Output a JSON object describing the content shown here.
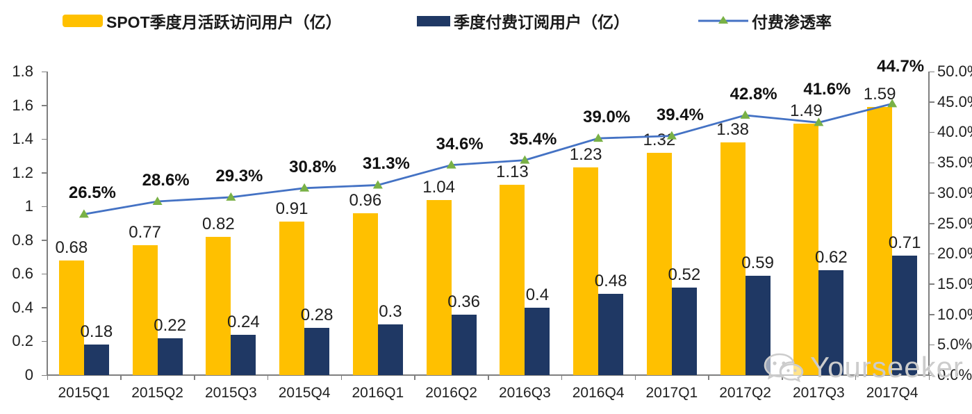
{
  "watermark": {
    "text": "Yourseeker",
    "icon": "wechat-icon"
  },
  "colors": {
    "mau_bar": "#FFC000",
    "paid_bar": "#1F3864",
    "line": "#4472C4",
    "marker": "#79B146",
    "axis": "#7F7F7F",
    "text": "#1F1F1F",
    "watermark": "#CCCCCC"
  },
  "chart_data": {
    "type": "bar",
    "subtype": "grouped-bars-with-line",
    "title": "",
    "xlabel": "",
    "ylabel_left": "",
    "ylabel_right": "",
    "grid": false,
    "legend_position": "top",
    "categories": [
      "2015Q1",
      "2015Q2",
      "2015Q3",
      "2015Q4",
      "2016Q1",
      "2016Q2",
      "2016Q3",
      "2016Q4",
      "2017Q1",
      "2017Q2",
      "2017Q3",
      "2017Q4"
    ],
    "series": [
      {
        "name": "SPOT季度月活跃访问用户（亿）",
        "type": "bar",
        "axis": "left",
        "color": "#FFC000",
        "values": [
          0.68,
          0.77,
          0.82,
          0.91,
          0.96,
          1.04,
          1.13,
          1.23,
          1.32,
          1.38,
          1.49,
          1.59
        ]
      },
      {
        "name": "季度付费订阅用户（亿）",
        "type": "bar",
        "axis": "left",
        "color": "#1F3864",
        "values": [
          0.18,
          0.22,
          0.24,
          0.28,
          0.3,
          0.36,
          0.4,
          0.48,
          0.52,
          0.59,
          0.62,
          0.71
        ]
      },
      {
        "name": "付费渗透率",
        "type": "line",
        "axis": "right",
        "color": "#4472C4",
        "marker": "triangle",
        "marker_color": "#79B146",
        "values": [
          26.5,
          28.6,
          29.3,
          30.8,
          31.3,
          34.6,
          35.4,
          39.0,
          39.4,
          42.8,
          41.6,
          44.7
        ],
        "labels": [
          "26.5%",
          "28.6%",
          "29.3%",
          "30.8%",
          "31.3%",
          "34.6%",
          "35.4%",
          "39.0%",
          "39.4%",
          "42.8%",
          "41.6%",
          "44.7%"
        ]
      }
    ],
    "left_axis": {
      "min": 0,
      "max": 1.8,
      "step": 0.2,
      "ticks": [
        "0",
        "0.2",
        "0.4",
        "0.6",
        "0.8",
        "1",
        "1.2",
        "1.4",
        "1.6",
        "1.8"
      ]
    },
    "right_axis": {
      "min": 0,
      "max": 50,
      "step": 5,
      "ticks": [
        "0.0%",
        "5.0%",
        "10.0%",
        "15.0%",
        "20.0%",
        "25.0%",
        "30.0%",
        "35.0%",
        "40.0%",
        "45.0%",
        "50.0%"
      ]
    }
  }
}
